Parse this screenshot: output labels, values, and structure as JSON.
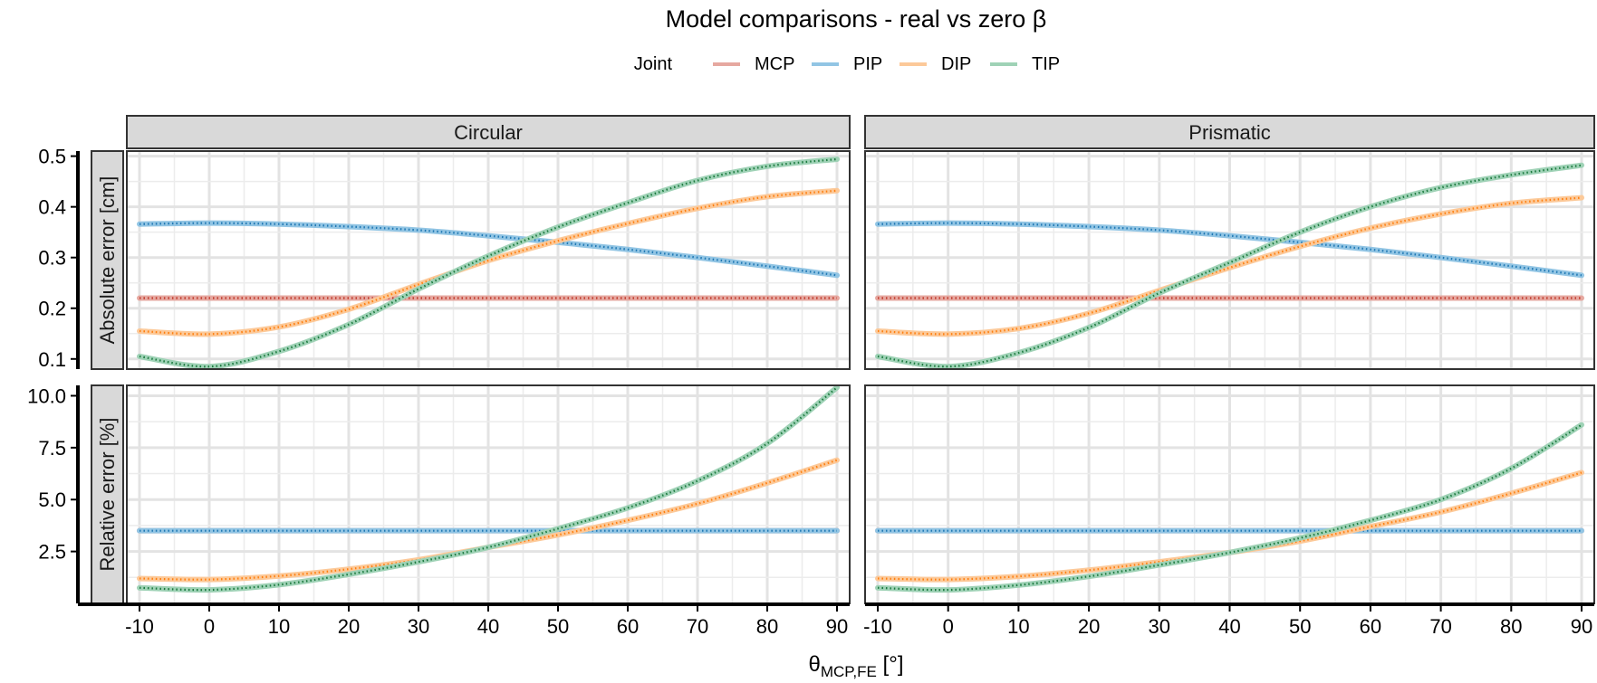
{
  "chart_data": {
    "type": "line",
    "title": "Model comparisons - real vs zero β",
    "legend": {
      "title": "Joint",
      "position": "top",
      "entries": [
        {
          "name": "MCP",
          "color": "#e6a8a0"
        },
        {
          "name": "PIP",
          "color": "#92c5e4"
        },
        {
          "name": "DIP",
          "color": "#fcc999"
        },
        {
          "name": "TIP",
          "color": "#9fd2b6"
        }
      ]
    },
    "xlabel": {
      "main": "θ",
      "sub": "MCP,FE",
      "unit": " [°]"
    },
    "x_ticks": [
      -10,
      0,
      10,
      20,
      30,
      40,
      50,
      60,
      70,
      80,
      90
    ],
    "xlim": [
      -10,
      90
    ],
    "columns": [
      "Circular",
      "Prismatic"
    ],
    "rows": [
      {
        "ylabel": "Absolute error [cm]",
        "ylim": [
          0.08,
          0.51
        ],
        "ticks": [
          0.1,
          0.2,
          0.3,
          0.4,
          0.5
        ],
        "tick_labels": [
          "0.1",
          "0.2",
          "0.3",
          "0.4",
          "0.5"
        ]
      },
      {
        "ylabel": "Relative error [%]",
        "ylim": [
          0.0,
          10.5
        ],
        "ticks": [
          2.5,
          5.0,
          7.5,
          10.0
        ],
        "tick_labels": [
          "2.5",
          "5.0",
          "7.5",
          "10.0"
        ]
      }
    ],
    "grid": true,
    "series_colors": {
      "MCP": {
        "light": "#e6a8a0",
        "dark": "#c0392b"
      },
      "PIP": {
        "light": "#92c5e4",
        "dark": "#1f78b4"
      },
      "DIP": {
        "light": "#fcc999",
        "dark": "#ff7f0e"
      },
      "TIP": {
        "light": "#9fd2b6",
        "dark": "#1b7a3e"
      }
    },
    "panels": [
      {
        "row": 0,
        "col": 0,
        "x": [
          -10,
          0,
          10,
          20,
          30,
          40,
          50,
          60,
          70,
          80,
          90
        ],
        "series": [
          {
            "name": "MCP",
            "values": [
              0.22,
              0.22,
              0.22,
              0.22,
              0.22,
              0.22,
              0.22,
              0.22,
              0.22,
              0.22,
              0.22
            ]
          },
          {
            "name": "PIP",
            "values": [
              0.366,
              0.368,
              0.366,
              0.361,
              0.354,
              0.343,
              0.33,
              0.316,
              0.3,
              0.283,
              0.265
            ]
          },
          {
            "name": "DIP",
            "values": [
              0.155,
              0.149,
              0.163,
              0.198,
              0.247,
              0.294,
              0.333,
              0.367,
              0.397,
              0.42,
              0.432
            ]
          },
          {
            "name": "TIP",
            "values": [
              0.105,
              0.085,
              0.115,
              0.168,
              0.238,
              0.303,
              0.36,
              0.408,
              0.452,
              0.48,
              0.494
            ]
          }
        ]
      },
      {
        "row": 0,
        "col": 1,
        "x": [
          -10,
          0,
          10,
          20,
          30,
          40,
          50,
          60,
          70,
          80,
          90
        ],
        "series": [
          {
            "name": "MCP",
            "values": [
              0.22,
              0.22,
              0.22,
              0.22,
              0.22,
              0.22,
              0.22,
              0.22,
              0.22,
              0.22,
              0.22
            ]
          },
          {
            "name": "PIP",
            "values": [
              0.366,
              0.368,
              0.366,
              0.361,
              0.354,
              0.343,
              0.33,
              0.316,
              0.3,
              0.283,
              0.265
            ]
          },
          {
            "name": "DIP",
            "values": [
              0.155,
              0.149,
              0.16,
              0.19,
              0.235,
              0.28,
              0.322,
              0.358,
              0.386,
              0.407,
              0.418
            ]
          },
          {
            "name": "TIP",
            "values": [
              0.105,
              0.085,
              0.112,
              0.162,
              0.23,
              0.29,
              0.35,
              0.4,
              0.438,
              0.463,
              0.482
            ]
          }
        ]
      },
      {
        "row": 1,
        "col": 0,
        "x": [
          -10,
          0,
          10,
          20,
          30,
          40,
          50,
          60,
          70,
          80,
          90
        ],
        "series": [
          {
            "name": "MCP",
            "values": [
              3.5,
              3.5,
              3.5,
              3.5,
              3.5,
              3.5,
              3.5,
              3.5,
              3.5,
              3.5,
              3.5
            ]
          },
          {
            "name": "PIP",
            "values": [
              3.5,
              3.5,
              3.5,
              3.5,
              3.5,
              3.5,
              3.5,
              3.5,
              3.5,
              3.5,
              3.5
            ]
          },
          {
            "name": "DIP",
            "values": [
              1.2,
              1.15,
              1.32,
              1.65,
              2.1,
              2.7,
              3.3,
              4.0,
              4.8,
              5.8,
              6.9
            ]
          },
          {
            "name": "TIP",
            "values": [
              0.75,
              0.65,
              0.9,
              1.4,
              2.0,
              2.7,
              3.6,
              4.6,
              5.9,
              7.7,
              10.4
            ]
          }
        ]
      },
      {
        "row": 1,
        "col": 1,
        "x": [
          -10,
          0,
          10,
          20,
          30,
          40,
          50,
          60,
          70,
          80,
          90
        ],
        "series": [
          {
            "name": "MCP",
            "values": [
              3.5,
              3.5,
              3.5,
              3.5,
              3.5,
              3.5,
              3.5,
              3.5,
              3.5,
              3.5,
              3.5
            ]
          },
          {
            "name": "PIP",
            "values": [
              3.5,
              3.5,
              3.5,
              3.5,
              3.5,
              3.5,
              3.5,
              3.5,
              3.5,
              3.5,
              3.5
            ]
          },
          {
            "name": "DIP",
            "values": [
              1.2,
              1.15,
              1.3,
              1.6,
              2.0,
              2.45,
              3.0,
              3.7,
              4.4,
              5.3,
              6.3
            ]
          },
          {
            "name": "TIP",
            "values": [
              0.75,
              0.65,
              0.88,
              1.3,
              1.85,
              2.45,
              3.15,
              4.0,
              5.0,
              6.5,
              8.6
            ]
          }
        ]
      }
    ]
  }
}
